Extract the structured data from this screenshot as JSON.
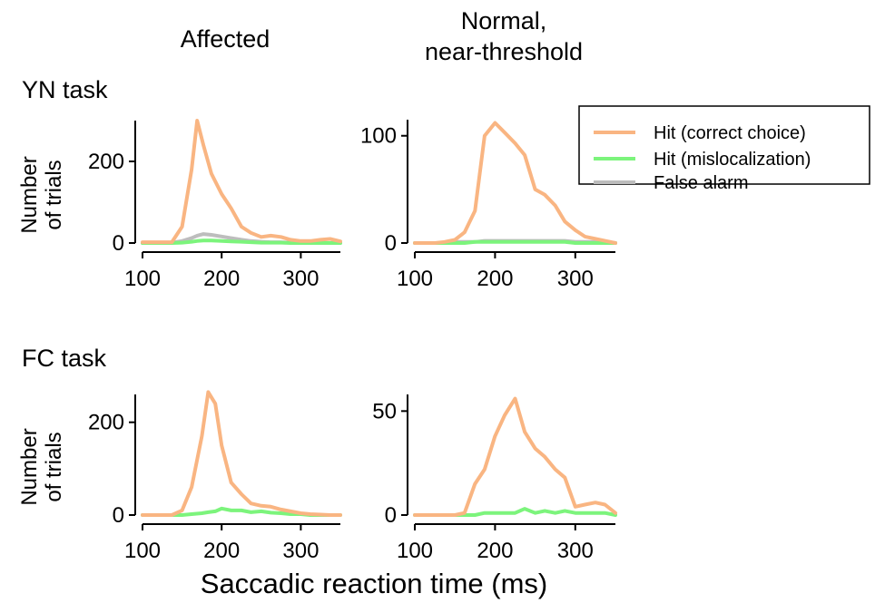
{
  "figure": {
    "col_titles": [
      [
        "Affected"
      ],
      [
        "Normal,",
        "near-threshold"
      ]
    ],
    "row_titles": [
      "YN task",
      "FC task"
    ],
    "ylabel_lines": [
      "Number",
      "of trials"
    ],
    "xlabel": "Saccadic reaction time (ms)"
  },
  "legend": {
    "placement": "top-right",
    "entries": [
      {
        "label": "Hit (correct choice)",
        "color": "#F9B582"
      },
      {
        "label": "Hit (mislocalization)",
        "color": "#7CF47C"
      },
      {
        "label": "False alarm",
        "color": "#BDBDBD"
      }
    ]
  },
  "colors": {
    "hit_correct": "#F9B582",
    "hit_mislocalization": "#7CF47C",
    "false_alarm": "#BDBDBD"
  },
  "chart_data": [
    {
      "type": "line",
      "panel": "YN task / Affected",
      "xlim": [
        100,
        350
      ],
      "ylim": [
        0,
        300
      ],
      "xticks": [
        100,
        200,
        300
      ],
      "yticks": [
        0,
        200
      ],
      "x": [
        100,
        112,
        125,
        137,
        150,
        162,
        169,
        177,
        187,
        200,
        212,
        225,
        237,
        250,
        262,
        275,
        287,
        300,
        312,
        325,
        337,
        350
      ],
      "series": [
        {
          "name": "Hit (correct choice)",
          "color": "#F9B582",
          "values": [
            2,
            2,
            2,
            2,
            40,
            180,
            300,
            240,
            170,
            120,
            85,
            40,
            25,
            15,
            18,
            15,
            8,
            5,
            5,
            8,
            10,
            4
          ]
        },
        {
          "name": "Hit (mislocalization)",
          "color": "#7CF47C",
          "values": [
            0,
            0,
            0,
            0,
            1,
            3,
            5,
            6,
            6,
            5,
            4,
            3,
            2,
            1,
            1,
            1,
            0,
            0,
            0,
            0,
            0,
            0
          ]
        },
        {
          "name": "False alarm",
          "color": "#BDBDBD",
          "values": [
            0,
            0,
            0,
            1,
            5,
            12,
            18,
            22,
            20,
            16,
            12,
            8,
            5,
            3,
            2,
            2,
            1,
            1,
            1,
            1,
            0,
            0
          ]
        }
      ]
    },
    {
      "type": "line",
      "panel": "YN task / Normal, near-threshold",
      "xlim": [
        100,
        350
      ],
      "ylim": [
        0,
        115
      ],
      "xticks": [
        100,
        200,
        300
      ],
      "yticks": [
        0,
        100
      ],
      "x": [
        100,
        112,
        125,
        137,
        150,
        162,
        175,
        187,
        200,
        212,
        225,
        237,
        250,
        262,
        275,
        287,
        300,
        312,
        325,
        337,
        350
      ],
      "series": [
        {
          "name": "Hit (correct choice)",
          "color": "#F9B582",
          "values": [
            0,
            0,
            0,
            1,
            3,
            10,
            30,
            100,
            112,
            103,
            93,
            82,
            50,
            45,
            35,
            20,
            12,
            6,
            4,
            2,
            0
          ]
        },
        {
          "name": "Hit (mislocalization)",
          "color": "#7CF47C",
          "values": [
            0,
            0,
            0,
            0,
            0,
            0,
            1,
            1,
            1,
            1,
            1,
            1,
            1,
            1,
            1,
            1,
            0,
            0,
            0,
            0,
            0
          ]
        },
        {
          "name": "False alarm",
          "color": "#BDBDBD",
          "values": [
            0,
            0,
            0,
            0,
            1,
            1,
            1,
            2,
            2,
            2,
            2,
            2,
            2,
            2,
            2,
            2,
            1,
            1,
            1,
            1,
            0
          ]
        }
      ]
    },
    {
      "type": "line",
      "panel": "FC task / Affected",
      "xlim": [
        100,
        350
      ],
      "ylim": [
        0,
        260
      ],
      "xticks": [
        100,
        200,
        300
      ],
      "yticks": [
        0,
        200
      ],
      "x": [
        100,
        112,
        125,
        137,
        150,
        162,
        175,
        183,
        192,
        200,
        212,
        225,
        237,
        250,
        262,
        275,
        287,
        300,
        312,
        325,
        337,
        350
      ],
      "series": [
        {
          "name": "Hit (correct choice)",
          "color": "#F9B582",
          "values": [
            0,
            0,
            0,
            0,
            10,
            60,
            170,
            265,
            240,
            150,
            70,
            45,
            25,
            20,
            18,
            12,
            8,
            4,
            2,
            1,
            0,
            0
          ]
        },
        {
          "name": "Hit (mislocalization)",
          "color": "#7CF47C",
          "values": [
            0,
            0,
            0,
            0,
            0,
            2,
            4,
            6,
            8,
            14,
            10,
            10,
            6,
            8,
            5,
            4,
            2,
            2,
            0,
            0,
            0,
            0
          ]
        }
      ]
    },
    {
      "type": "line",
      "panel": "FC task / Normal, near-threshold",
      "xlim": [
        100,
        350
      ],
      "ylim": [
        0,
        58
      ],
      "xticks": [
        100,
        200,
        300
      ],
      "yticks": [
        0,
        50
      ],
      "x": [
        100,
        112,
        125,
        137,
        150,
        162,
        175,
        187,
        200,
        212,
        225,
        237,
        250,
        262,
        275,
        287,
        300,
        312,
        325,
        337,
        350
      ],
      "series": [
        {
          "name": "Hit (correct choice)",
          "color": "#F9B582",
          "values": [
            0,
            0,
            0,
            0,
            0,
            1,
            15,
            22,
            38,
            48,
            56,
            40,
            32,
            28,
            22,
            18,
            4,
            5,
            6,
            5,
            1
          ]
        },
        {
          "name": "Hit (mislocalization)",
          "color": "#7CF47C",
          "values": [
            0,
            0,
            0,
            0,
            0,
            0,
            0,
            1,
            1,
            1,
            1,
            3,
            1,
            2,
            1,
            2,
            1,
            1,
            1,
            1,
            0
          ]
        }
      ]
    }
  ]
}
